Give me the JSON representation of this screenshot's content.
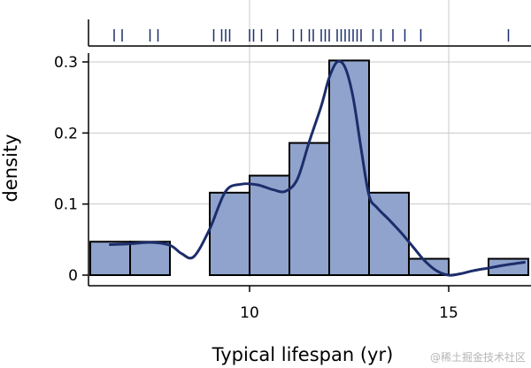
{
  "chart_data": {
    "type": "histogram",
    "xlabel": "Typical lifespan (yr)",
    "ylabel": "density",
    "xlim": [
      6.0,
      17.0
    ],
    "ylim": [
      0,
      0.3
    ],
    "x_ticks": [
      10,
      15
    ],
    "y_ticks": [
      0,
      0.1,
      0.2,
      0.3
    ],
    "y_tick_labels": [
      "0",
      "0.1",
      "0.2",
      "0.3"
    ],
    "grid": true,
    "bins": [
      {
        "x0": 6,
        "x1": 7,
        "value": 0.047
      },
      {
        "x0": 7,
        "x1": 8,
        "value": 0.047
      },
      {
        "x0": 9,
        "x1": 10,
        "value": 0.116
      },
      {
        "x0": 10,
        "x1": 11,
        "value": 0.14
      },
      {
        "x0": 11,
        "x1": 12,
        "value": 0.186
      },
      {
        "x0": 12,
        "x1": 13,
        "value": 0.302
      },
      {
        "x0": 13,
        "x1": 14,
        "value": 0.116
      },
      {
        "x0": 14,
        "x1": 15,
        "value": 0.023
      },
      {
        "x0": 16,
        "x1": 17,
        "value": 0.023
      }
    ],
    "kde": {
      "x": [
        6.5,
        7.0,
        7.5,
        8.0,
        8.3,
        8.6,
        9.0,
        9.4,
        9.8,
        10.2,
        10.6,
        10.9,
        11.2,
        11.5,
        11.8,
        12.0,
        12.2,
        12.4,
        12.6,
        12.8,
        13.0,
        13.2,
        13.5,
        13.8,
        14.1,
        14.4,
        14.7,
        15.0,
        15.3,
        15.6,
        16.0,
        16.4,
        16.9
      ],
      "y": [
        0.043,
        0.044,
        0.046,
        0.042,
        0.03,
        0.026,
        0.065,
        0.118,
        0.128,
        0.127,
        0.12,
        0.118,
        0.135,
        0.188,
        0.238,
        0.278,
        0.3,
        0.292,
        0.25,
        0.178,
        0.112,
        0.095,
        0.078,
        0.06,
        0.04,
        0.02,
        0.006,
        0.0,
        0.002,
        0.006,
        0.01,
        0.014,
        0.018
      ]
    },
    "rug": [
      6.6,
      6.8,
      7.5,
      7.7,
      9.1,
      9.3,
      9.4,
      9.5,
      10.0,
      10.1,
      10.3,
      10.7,
      11.1,
      11.3,
      11.5,
      11.6,
      11.8,
      11.9,
      12.0,
      12.2,
      12.3,
      12.4,
      12.5,
      12.6,
      12.7,
      12.8,
      13.1,
      13.3,
      13.6,
      13.9,
      14.3,
      16.5
    ]
  },
  "watermark": "@稀土掘金技术社区"
}
